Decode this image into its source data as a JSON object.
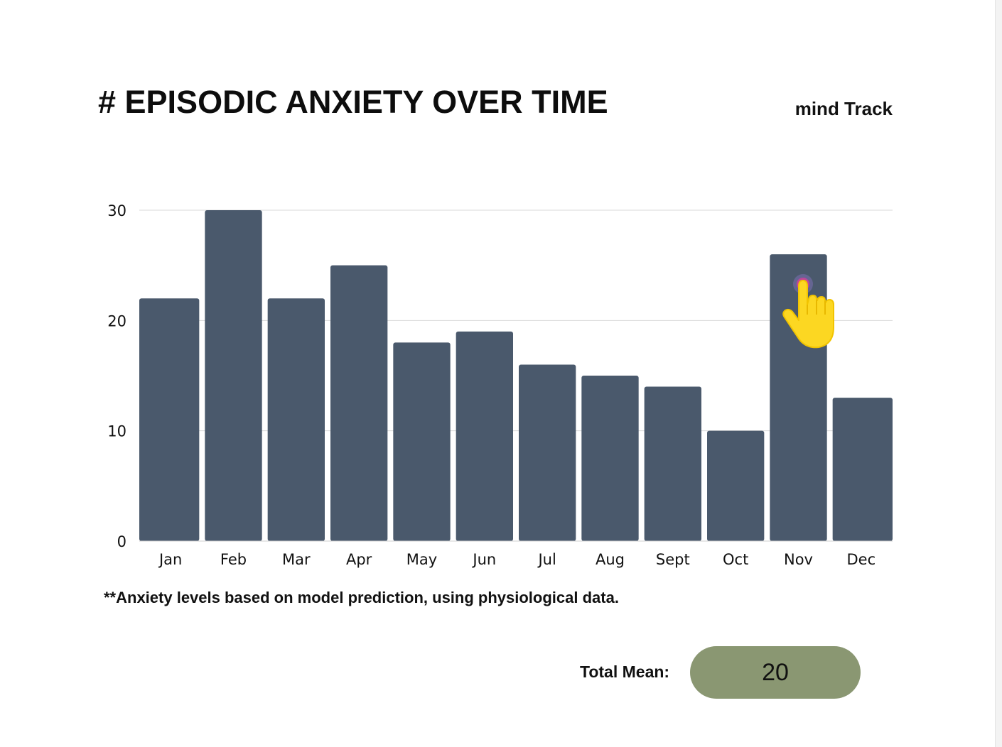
{
  "title": "# EPISODIC ANXIETY OVER TIME",
  "brand": "mind Track",
  "footnote": "**Anxiety levels based on model prediction, using physiological data.",
  "summary": {
    "label": "Total Mean:",
    "value": "20"
  },
  "colors": {
    "bar": "#4a596c",
    "grid": "#d8d8d8",
    "pill": "#8a9772",
    "cursor": "#fcd722",
    "cursor_dot": "#c0469a"
  },
  "cursor": {
    "icon": "pointing-hand-icon",
    "target_category": "Nov"
  },
  "chart_data": {
    "type": "bar",
    "categories": [
      "Jan",
      "Feb",
      "Mar",
      "Apr",
      "May",
      "Jun",
      "Jul",
      "Aug",
      "Sept",
      "Oct",
      "Nov",
      "Dec"
    ],
    "values": [
      22,
      30,
      22,
      25,
      18,
      19,
      16,
      15,
      14,
      10,
      26,
      13
    ],
    "title": "# EPISODIC ANXIETY OVER TIME",
    "xlabel": "",
    "ylabel": "",
    "ylim": [
      0,
      30
    ],
    "yticks": [
      0,
      10,
      20,
      30
    ],
    "grid": true,
    "legend": "none"
  }
}
